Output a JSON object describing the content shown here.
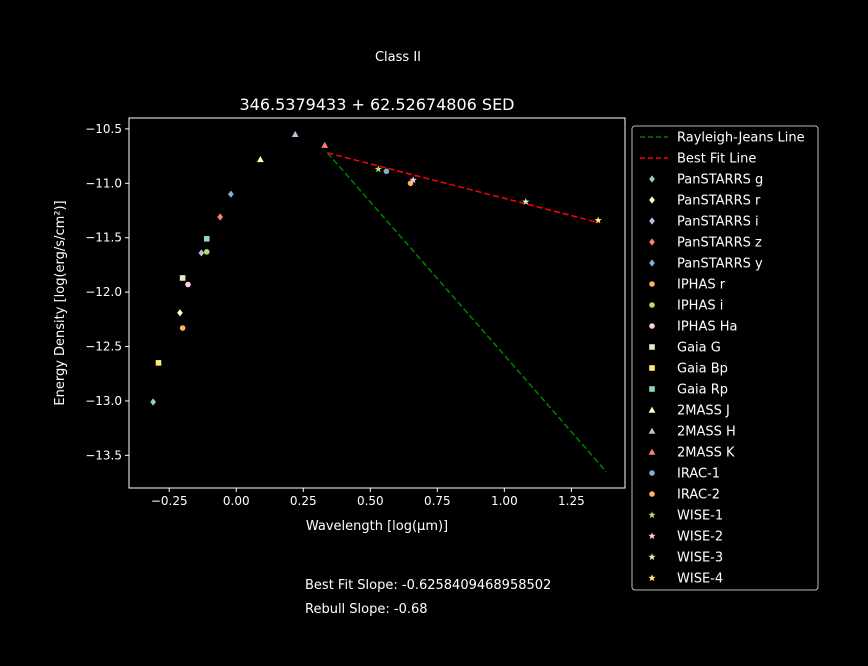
{
  "suptitle": "Class II",
  "footer": {
    "best_fit_slope": "Best Fit Slope: -0.6258409468958502",
    "rebull_slope": "Rebull Slope: -0.68"
  },
  "chart_data": {
    "type": "scatter",
    "title": "346.5379433 + 62.52674806 SED",
    "xlabel": "Wavelength [log(μm)]",
    "ylabel": "Energy Density [log(erg/s/cm²)]",
    "xlim": [
      -0.4,
      1.45
    ],
    "ylim": [
      -13.8,
      -10.4
    ],
    "xticks": [
      -0.25,
      0.0,
      0.25,
      0.5,
      0.75,
      1.0,
      1.25
    ],
    "xtick_labels": [
      "−0.25",
      "0.00",
      "0.25",
      "0.50",
      "0.75",
      "1.00",
      "1.25"
    ],
    "yticks": [
      -10.5,
      -11.0,
      -11.5,
      -12.0,
      -12.5,
      -13.0,
      -13.5
    ],
    "ytick_labels": [
      "−10.5",
      "−11.0",
      "−11.5",
      "−12.0",
      "−12.5",
      "−13.0",
      "−13.5"
    ],
    "grid": false,
    "legend_position": "outside-right",
    "lines": [
      {
        "name": "Rayleigh-Jeans Line",
        "color": "#008000",
        "style": "dashed",
        "x": [
          0.34,
          1.38
        ],
        "y": [
          -10.72,
          -13.65
        ]
      },
      {
        "name": "Best Fit Line",
        "color": "#ff0000",
        "style": "dashed",
        "x": [
          0.34,
          1.35
        ],
        "y": [
          -10.72,
          -11.36
        ]
      }
    ],
    "series": [
      {
        "name": "PanSTARRS g",
        "marker": "diamond",
        "color": "#8dd3c7",
        "x": [
          -0.31
        ],
        "y": [
          -13.01
        ]
      },
      {
        "name": "PanSTARRS r",
        "marker": "diamond",
        "color": "#ffffb3",
        "x": [
          -0.21
        ],
        "y": [
          -12.19
        ]
      },
      {
        "name": "PanSTARRS i",
        "marker": "diamond",
        "color": "#bebada",
        "x": [
          -0.13
        ],
        "y": [
          -11.64
        ]
      },
      {
        "name": "PanSTARRS z",
        "marker": "diamond",
        "color": "#fb8072",
        "x": [
          -0.06
        ],
        "y": [
          -11.31
        ]
      },
      {
        "name": "PanSTARRS y",
        "marker": "diamond",
        "color": "#80b1d3",
        "x": [
          -0.02
        ],
        "y": [
          -11.1
        ]
      },
      {
        "name": "IPHAS r",
        "marker": "circle",
        "color": "#fdb462",
        "x": [
          -0.2
        ],
        "y": [
          -12.33
        ]
      },
      {
        "name": "IPHAS i",
        "marker": "circle",
        "color": "#b3de69",
        "x": [
          -0.11
        ],
        "y": [
          -11.63
        ]
      },
      {
        "name": "IPHAS Ha",
        "marker": "circle",
        "color": "#fccde5",
        "x": [
          -0.18
        ],
        "y": [
          -11.93
        ]
      },
      {
        "name": "Gaia G",
        "marker": "square",
        "color": "#d9f0c4",
        "x": [
          -0.2
        ],
        "y": [
          -11.87
        ]
      },
      {
        "name": "Gaia Bp",
        "marker": "square",
        "color": "#ffed6f",
        "x": [
          -0.29
        ],
        "y": [
          -12.65
        ]
      },
      {
        "name": "Gaia Rp",
        "marker": "square",
        "color": "#8dd3c7",
        "x": [
          -0.11
        ],
        "y": [
          -11.51
        ]
      },
      {
        "name": "2MASS J",
        "marker": "triangle",
        "color": "#ffffb3",
        "x": [
          0.09
        ],
        "y": [
          -10.78
        ]
      },
      {
        "name": "2MASS H",
        "marker": "triangle",
        "color": "#bebada",
        "x": [
          0.22
        ],
        "y": [
          -10.55
        ]
      },
      {
        "name": "2MASS K",
        "marker": "triangle",
        "color": "#fb8072",
        "x": [
          0.33
        ],
        "y": [
          -10.65
        ]
      },
      {
        "name": "IRAC-1",
        "marker": "circle",
        "color": "#80b1d3",
        "x": [
          0.56
        ],
        "y": [
          -10.89
        ]
      },
      {
        "name": "IRAC-2",
        "marker": "circle",
        "color": "#fdb462",
        "x": [
          0.65
        ],
        "y": [
          -11.0
        ]
      },
      {
        "name": "WISE-1",
        "marker": "star",
        "color": "#b3de69",
        "x": [
          0.53
        ],
        "y": [
          -10.87
        ]
      },
      {
        "name": "WISE-2",
        "marker": "star",
        "color": "#fccde5",
        "x": [
          0.66
        ],
        "y": [
          -10.97
        ]
      },
      {
        "name": "WISE-3",
        "marker": "star",
        "color": "#d9f0c4",
        "x": [
          1.08
        ],
        "y": [
          -11.17
        ]
      },
      {
        "name": "WISE-4",
        "marker": "star",
        "color": "#ffed6f",
        "x": [
          1.35
        ],
        "y": [
          -11.34
        ]
      }
    ]
  }
}
